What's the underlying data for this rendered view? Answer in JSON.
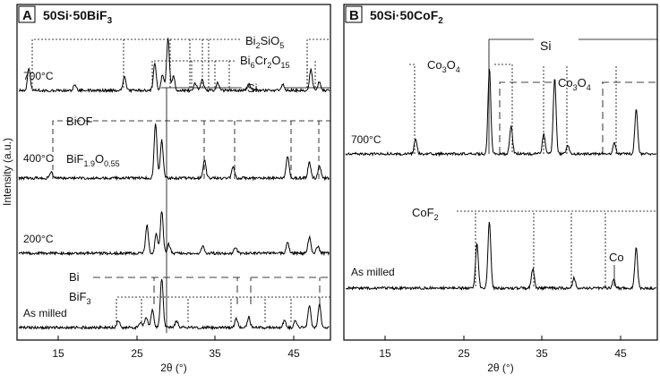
{
  "y_label": "Intensity (a.u.)",
  "x_label": "2θ (°)",
  "panels": [
    {
      "letter": "A",
      "title": "50Si·50BiF",
      "title_sub": "3",
      "xlim": [
        10,
        50
      ],
      "ticks": [
        "15",
        "25",
        "35",
        "45"
      ],
      "tick_values": [
        15,
        25,
        35,
        45
      ],
      "scans": [
        {
          "label": "700°C",
          "peaks": [
            [
              11.3,
              25
            ],
            [
              17.2,
              6
            ],
            [
              23.6,
              15
            ],
            [
              27.5,
              30
            ],
            [
              28.5,
              18
            ],
            [
              29.2,
              58
            ],
            [
              29.9,
              16
            ],
            [
              32.7,
              8
            ],
            [
              33.6,
              12
            ],
            [
              35.6,
              8
            ],
            [
              39.6,
              8
            ],
            [
              44.0,
              7
            ],
            [
              47.6,
              24
            ],
            [
              48.7,
              10
            ]
          ]
        },
        {
          "label": "400°C",
          "peaks": [
            [
              14.2,
              6
            ],
            [
              27.6,
              62
            ],
            [
              28.4,
              42
            ],
            [
              33.9,
              20
            ],
            [
              37.6,
              13
            ],
            [
              44.6,
              25
            ],
            [
              47.4,
              18
            ],
            [
              48.7,
              14
            ]
          ]
        },
        {
          "label": "200°C",
          "peaks": [
            [
              26.5,
              32
            ],
            [
              27.7,
              22
            ],
            [
              28.4,
              48
            ],
            [
              29.3,
              10
            ],
            [
              33.7,
              8
            ],
            [
              37.9,
              6
            ],
            [
              44.6,
              12
            ],
            [
              47.4,
              18
            ],
            [
              48.5,
              8
            ]
          ]
        },
        {
          "label": "As milled",
          "peaks": [
            [
              22.8,
              8
            ],
            [
              25.7,
              7
            ],
            [
              26.4,
              12
            ],
            [
              27.2,
              20
            ],
            [
              28.4,
              55
            ],
            [
              30.3,
              8
            ],
            [
              38.0,
              10
            ],
            [
              39.6,
              12
            ],
            [
              44.2,
              8
            ],
            [
              45.6,
              8
            ],
            [
              47.4,
              25
            ],
            [
              48.7,
              26
            ]
          ]
        }
      ],
      "phases": [
        {
          "label": "Bi2SiO5",
          "parts": [
            [
              "Bi",
              ""
            ],
            [
              "2",
              "sub"
            ],
            [
              "SiO",
              ""
            ],
            [
              "5",
              "sub"
            ]
          ]
        },
        {
          "label": "Bi6Cr2O15",
          "parts": [
            [
              "Bi",
              ""
            ],
            [
              "6",
              "sub"
            ],
            [
              "Cr",
              ""
            ],
            [
              "2",
              "sub"
            ],
            [
              "O",
              ""
            ],
            [
              "15",
              "sub"
            ]
          ]
        },
        {
          "label": "Si",
          "parts": [
            [
              "Si",
              ""
            ]
          ]
        },
        {
          "label": "BiOF",
          "parts": [
            [
              "BiOF",
              ""
            ]
          ]
        },
        {
          "label": "BiF1.9O0.55",
          "parts": [
            [
              "BiF",
              ""
            ],
            [
              "1.9",
              "sub"
            ],
            [
              "O",
              ""
            ],
            [
              "0.55",
              "sub"
            ]
          ]
        },
        {
          "label": "Bi",
          "parts": [
            [
              "Bi",
              ""
            ]
          ]
        },
        {
          "label": "BiF3",
          "parts": [
            [
              "BiF",
              ""
            ],
            [
              "3",
              "sub"
            ]
          ]
        }
      ]
    },
    {
      "letter": "B",
      "title": "50Si·50CoF",
      "title_sub": "2",
      "xlim": [
        10,
        50
      ],
      "ticks": [
        "15",
        "25",
        "35",
        "45"
      ],
      "tick_values": [
        15,
        25,
        35,
        45
      ],
      "scans": [
        {
          "label": "700°C",
          "peaks": [
            [
              19.0,
              16
            ],
            [
              28.5,
              95
            ],
            [
              31.3,
              30
            ],
            [
              35.5,
              22
            ],
            [
              36.9,
              85
            ],
            [
              38.6,
              10
            ],
            [
              44.6,
              12
            ],
            [
              47.4,
              50
            ]
          ]
        },
        {
          "label": "As milled",
          "peaks": [
            [
              26.9,
              50
            ],
            [
              28.5,
              75
            ],
            [
              34.1,
              22
            ],
            [
              39.4,
              12
            ],
            [
              44.5,
              10
            ],
            [
              47.4,
              45
            ]
          ]
        }
      ],
      "phases": [
        {
          "label": "Si",
          "parts": [
            [
              "Si",
              ""
            ]
          ]
        },
        {
          "label": "Co3O4",
          "parts": [
            [
              "Co",
              ""
            ],
            [
              "3",
              "sub"
            ],
            [
              "O",
              ""
            ],
            [
              "4",
              "sub"
            ]
          ]
        },
        {
          "label": "Co3O4",
          "parts": [
            [
              "Co",
              ""
            ],
            [
              "3",
              "sub"
            ],
            [
              "O",
              ""
            ],
            [
              "4",
              "sub"
            ]
          ]
        },
        {
          "label": "CoF2",
          "parts": [
            [
              "CoF",
              ""
            ],
            [
              "2",
              "sub"
            ]
          ]
        },
        {
          "label": "Co",
          "parts": [
            [
              "Co",
              ""
            ]
          ]
        }
      ]
    }
  ]
}
